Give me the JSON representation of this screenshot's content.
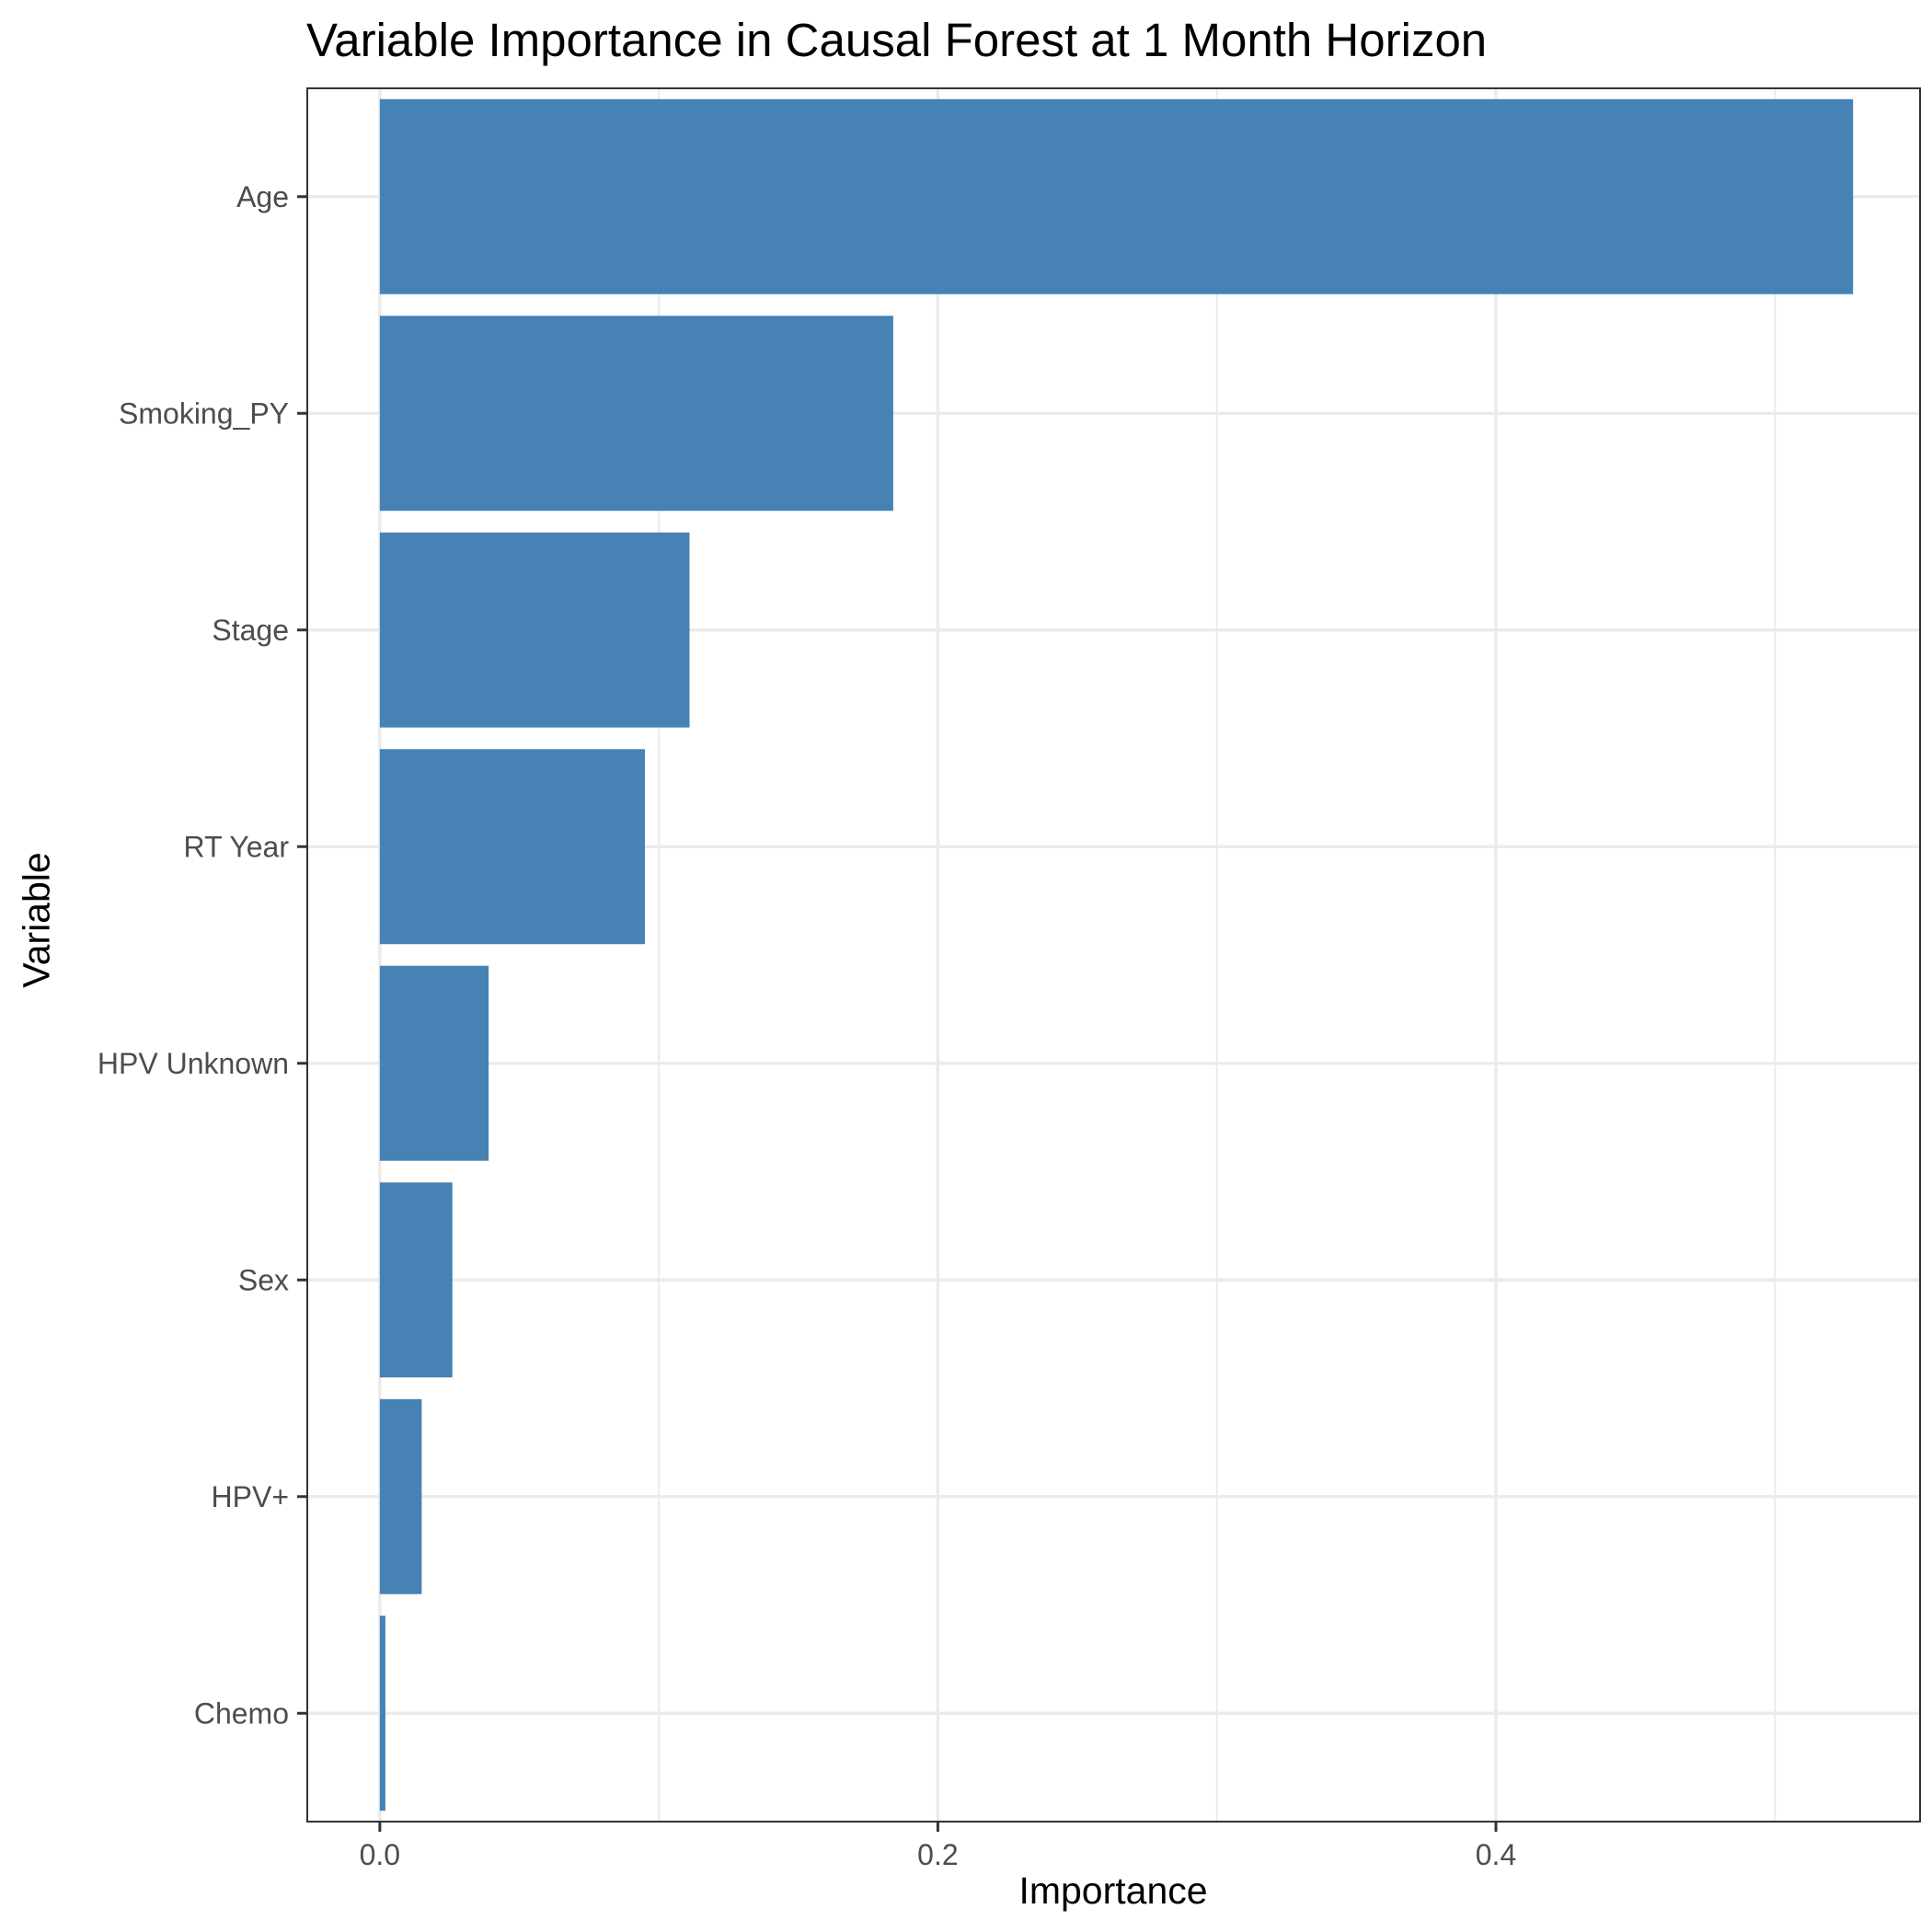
{
  "chart_data": {
    "type": "bar",
    "orientation": "horizontal",
    "title": "Variable Importance in Causal Forest at 1 Month Horizon",
    "xlabel": "Importance",
    "ylabel": "Variable",
    "categories": [
      "Age",
      "Smoking_PY",
      "Stage",
      "RT Year",
      "HPV Unknown",
      "Sex",
      "HPV+",
      "Chemo"
    ],
    "values": [
      0.528,
      0.184,
      0.111,
      0.095,
      0.039,
      0.026,
      0.015,
      0.002
    ],
    "xlim": [
      -0.026,
      0.552
    ],
    "xticks": [
      0.0,
      0.2,
      0.4
    ],
    "xtick_labels": [
      "0.0",
      "0.2",
      "0.4"
    ],
    "grid": true,
    "legend": "none",
    "bar_color": "#4682B4"
  }
}
